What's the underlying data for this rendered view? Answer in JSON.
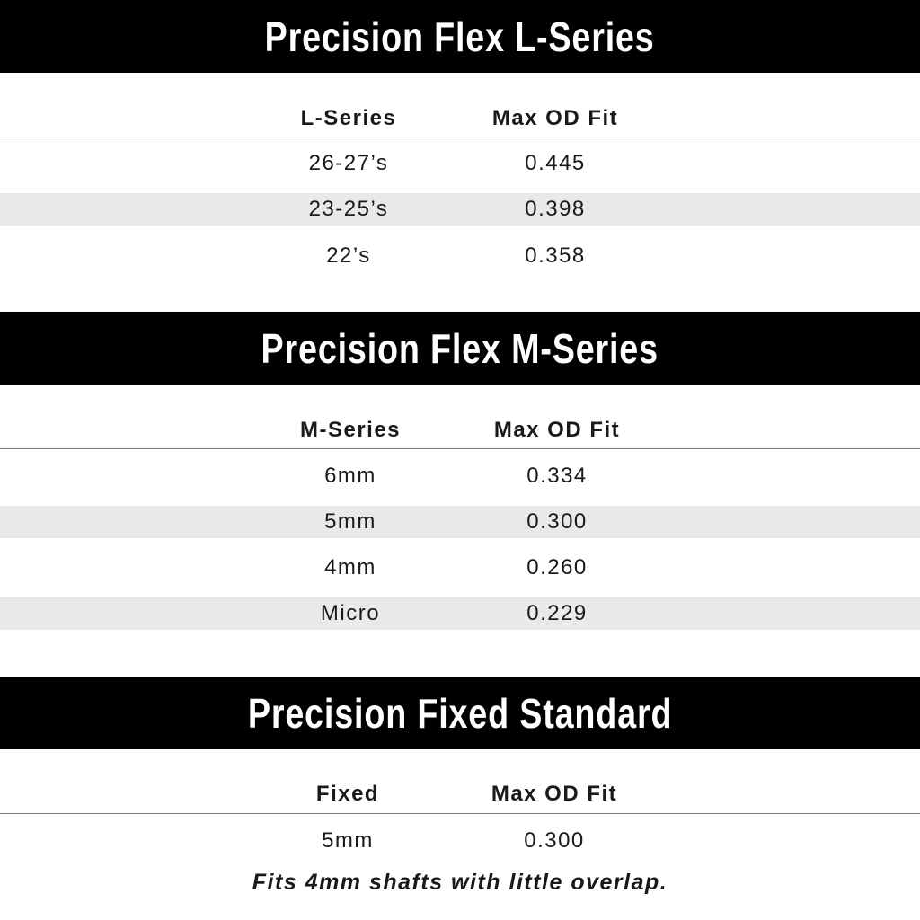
{
  "colors": {
    "banner": "#000000",
    "banner_text": "#ffffff",
    "stripe": "#e9e9eb"
  },
  "sections": [
    {
      "title": "Precision Flex L-Series",
      "headers": [
        "L-Series",
        "Max OD Fit"
      ],
      "rows": [
        [
          "26-27’s",
          "0.445"
        ],
        [
          "23-25’s",
          "0.398"
        ],
        [
          "22’s",
          "0.358"
        ]
      ]
    },
    {
      "title": "Precision Flex M-Series",
      "headers": [
        "M-Series",
        "Max OD Fit"
      ],
      "rows": [
        [
          "6mm",
          "0.334"
        ],
        [
          "5mm",
          "0.300"
        ],
        [
          "4mm",
          "0.260"
        ],
        [
          "Micro",
          "0.229"
        ]
      ]
    },
    {
      "title": "Precision Fixed Standard",
      "headers": [
        "Fixed",
        "Max OD Fit"
      ],
      "rows": [
        [
          "5mm",
          "0.300"
        ]
      ]
    }
  ],
  "note": "Fits 4mm shafts with little overlap."
}
